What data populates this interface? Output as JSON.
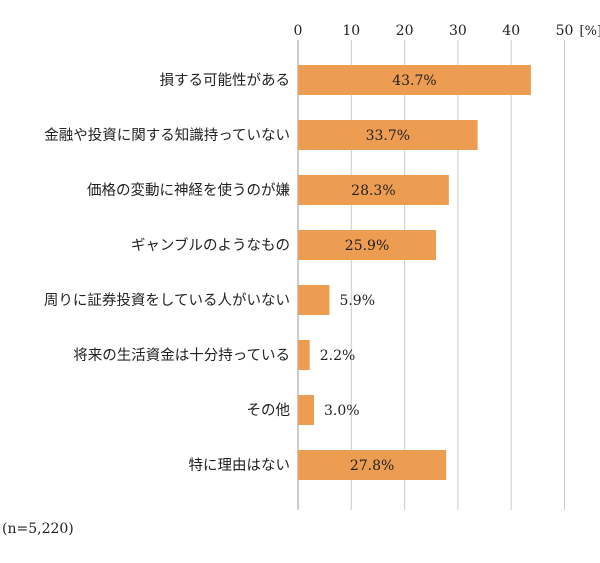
{
  "chart_data": {
    "type": "bar",
    "orientation": "horizontal",
    "categories": [
      "損する可能性がある",
      "金融や投資に関する知識持っていない",
      "価格の変動に神経を使うのが嫌",
      "ギャンブルのようなもの",
      "周りに証券投資をしている人がいない",
      "将来の生活資金は十分持っている",
      "その他",
      "特に理由はない"
    ],
    "values": [
      43.7,
      33.7,
      28.3,
      25.9,
      5.9,
      2.2,
      3.0,
      27.8
    ],
    "data_labels": [
      "43.7%",
      "33.7%",
      "28.3%",
      "25.9%",
      "5.9%",
      "2.2%",
      "3.0%",
      "27.8%"
    ],
    "x_ticks": [
      "0",
      "10",
      "20",
      "30",
      "40",
      "50"
    ],
    "xlim": [
      0,
      50
    ],
    "unit": "[%]",
    "axis_position": "top",
    "grid": true,
    "legend": "none",
    "colors": {
      "bar": "#ED9D52",
      "grid": "#CCCCCC",
      "text": "#222222"
    }
  },
  "note": "(n=5,220)"
}
